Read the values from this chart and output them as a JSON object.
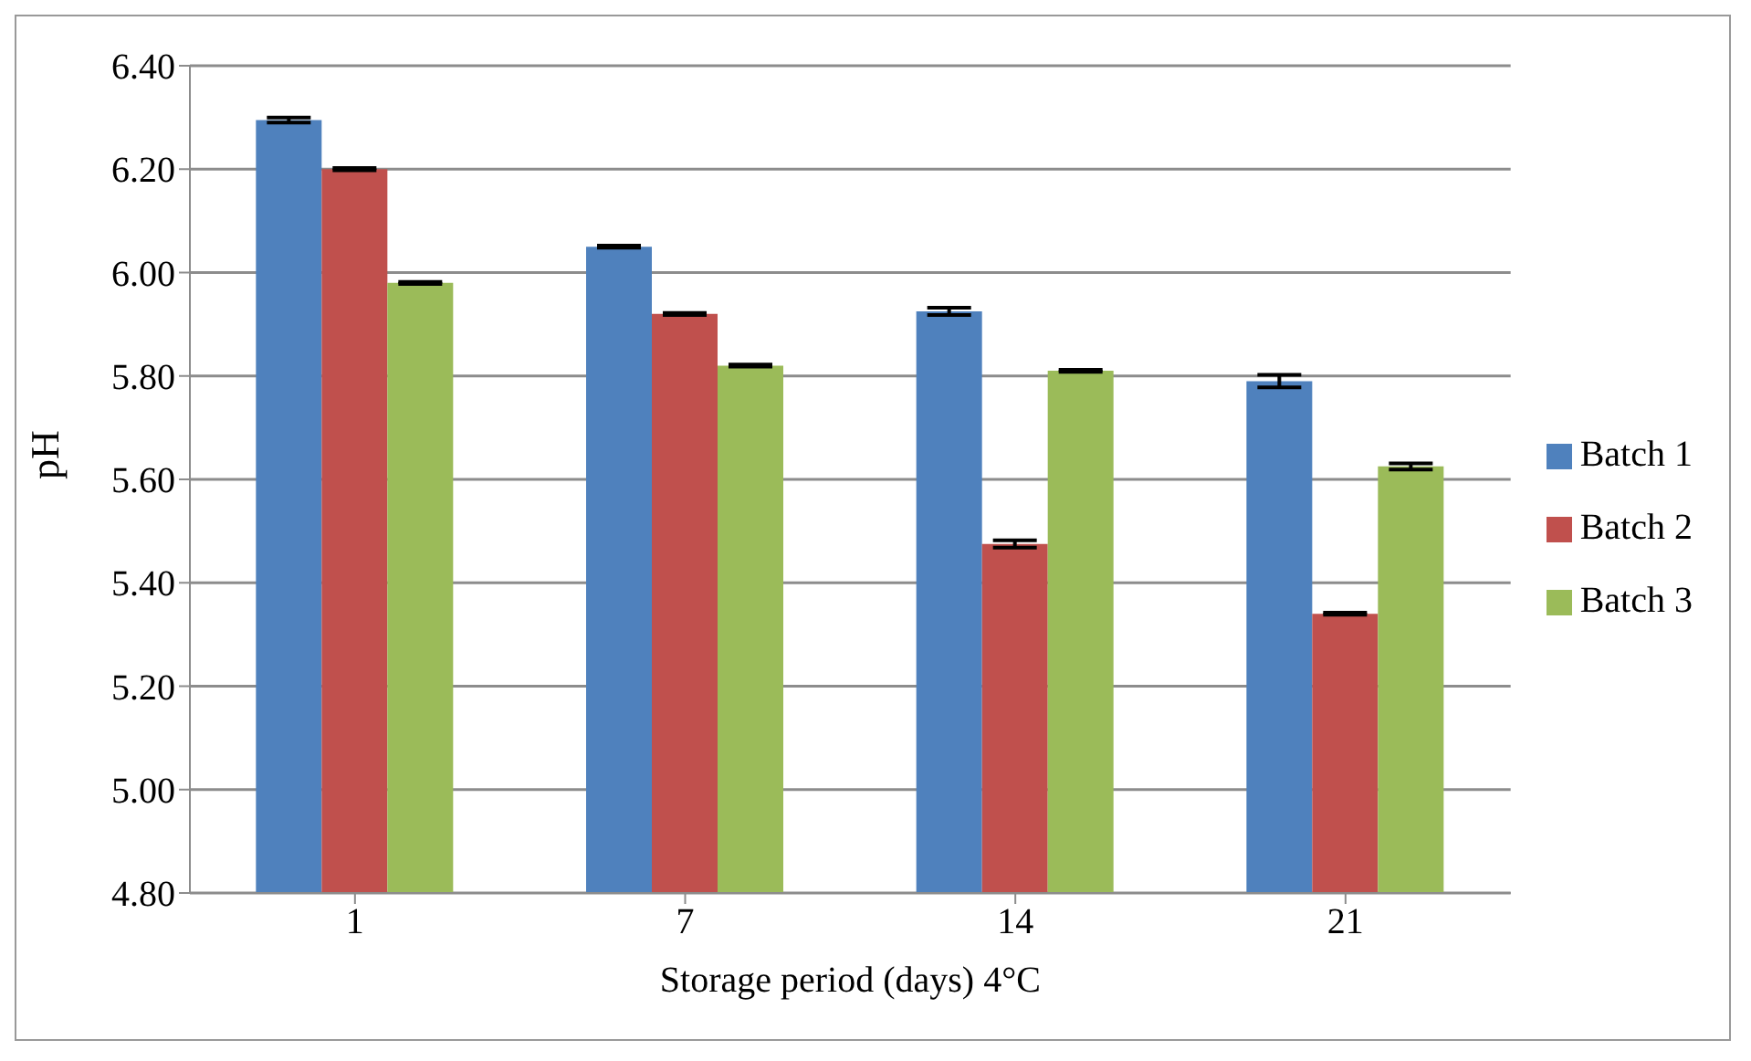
{
  "chart_data": {
    "type": "bar",
    "xlabel": "Storage period (days) 4°C",
    "ylabel": "pH",
    "categories": [
      "1",
      "7",
      "14",
      "21"
    ],
    "series": [
      {
        "name": "Batch 1",
        "color": "#4f81bd",
        "values": [
          6.295,
          6.05,
          5.925,
          5.79
        ],
        "errors": [
          0.005,
          0.002,
          0.007,
          0.012
        ]
      },
      {
        "name": "Batch 2",
        "color": "#c0504d",
        "values": [
          6.2,
          5.92,
          5.475,
          5.34
        ],
        "errors": [
          0.002,
          0.002,
          0.007,
          0.002
        ]
      },
      {
        "name": "Batch 3",
        "color": "#9bbb59",
        "values": [
          5.98,
          5.82,
          5.81,
          5.625
        ],
        "errors": [
          0.002,
          0.002,
          0.002,
          0.006
        ]
      }
    ],
    "ylim": [
      4.8,
      6.4
    ],
    "yticks": [
      {
        "value": 4.8,
        "label": "4.80"
      },
      {
        "value": 5.0,
        "label": "5.00"
      },
      {
        "value": 5.2,
        "label": "5.20"
      },
      {
        "value": 5.4,
        "label": "5.40"
      },
      {
        "value": 5.6,
        "label": "5.60"
      },
      {
        "value": 5.8,
        "label": "5.80"
      },
      {
        "value": 6.0,
        "label": "6.00"
      },
      {
        "value": 6.2,
        "label": "6.20"
      },
      {
        "value": 6.4,
        "label": "6.40"
      }
    ],
    "grid": "y",
    "legend": "right"
  }
}
